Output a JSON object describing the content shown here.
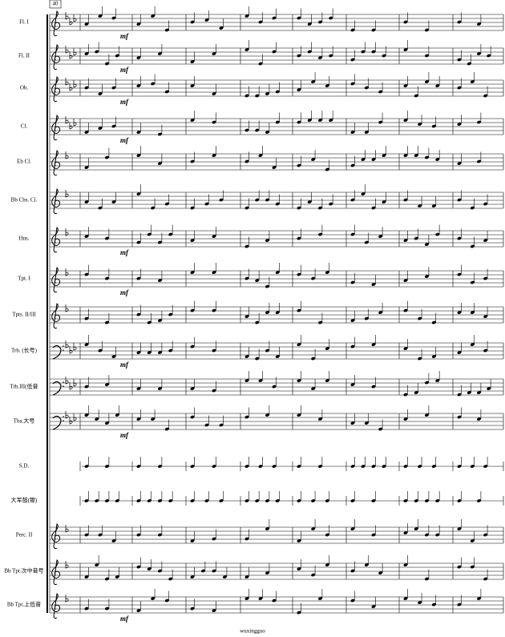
{
  "header": {
    "measure_number": "40"
  },
  "staves": [
    {
      "name": "Fl. I",
      "dynamic": "mf"
    },
    {
      "name": "Fl. II",
      "dynamic": "mf"
    },
    {
      "name": "Ob.",
      "dynamic": "mf"
    },
    {
      "name": "Cl.",
      "dynamic": "mf"
    },
    {
      "name": "Eb Cl."
    },
    {
      "name": "Bb Cbs. Cl."
    },
    {
      "name": "Hns.",
      "dynamic": "mf"
    },
    {
      "name": "Tpt. I",
      "dynamic": "mf"
    },
    {
      "name": "Tpts. II/III"
    },
    {
      "name": "Trb. (长号)",
      "dynamic": "mf"
    },
    {
      "name": "Trb.III(低音"
    },
    {
      "name": "Tba.大号",
      "dynamic": "mf"
    },
    {
      "name": "S.D."
    },
    {
      "name": "大军鼓(镲)"
    },
    {
      "name": "Perc. II"
    },
    {
      "name": "Bb Tpt.次中音号"
    },
    {
      "name": "Bb Tpt.上低音",
      "dynamic": "mf"
    }
  ],
  "footer": {
    "credit": "wuxingguo"
  }
}
